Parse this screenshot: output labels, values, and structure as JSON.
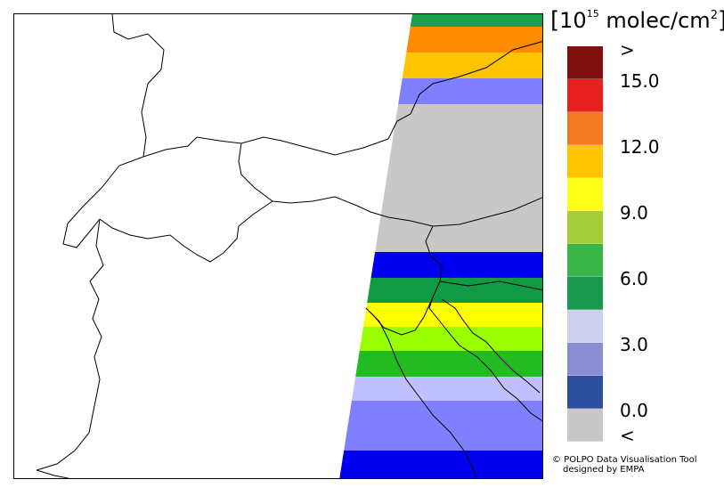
{
  "legend": {
    "unit": {
      "open": "[",
      "base": "10",
      "exponent": "15",
      "text": " molec/cm",
      "square": "2",
      "close": "]"
    },
    "colors": [
      "#7f1010",
      "#e82020",
      "#f47a20",
      "#ffc400",
      "#ffff1a",
      "#a7cc3a",
      "#39b54a",
      "#1a9950",
      "#cfcfee",
      "#8c8cd2",
      "#2e4fa0",
      "#c8c8c8"
    ],
    "labels": [
      ">",
      "15.0",
      "12.0",
      "9.0",
      "6.0",
      "3.0",
      "0.0",
      "<"
    ]
  },
  "swath": {
    "bands": [
      {
        "color": "#1aa24a"
      },
      {
        "color": "#ff8c00"
      },
      {
        "color": "#ffc400"
      },
      {
        "color": "#8080ff"
      },
      {
        "color": "#c8c8c8"
      },
      {
        "color": "#0000ee"
      },
      {
        "color": "#119a44"
      },
      {
        "color": "#ffff00"
      },
      {
        "color": "#99ff00"
      },
      {
        "color": "#22bb22"
      },
      {
        "color": "#c0c0ff"
      },
      {
        "color": "#8080ff"
      },
      {
        "color": "#0000ee"
      }
    ]
  },
  "credit": {
    "line1": "© POLPO Data Visualisation Tool",
    "line2": "designed by EMPA"
  }
}
